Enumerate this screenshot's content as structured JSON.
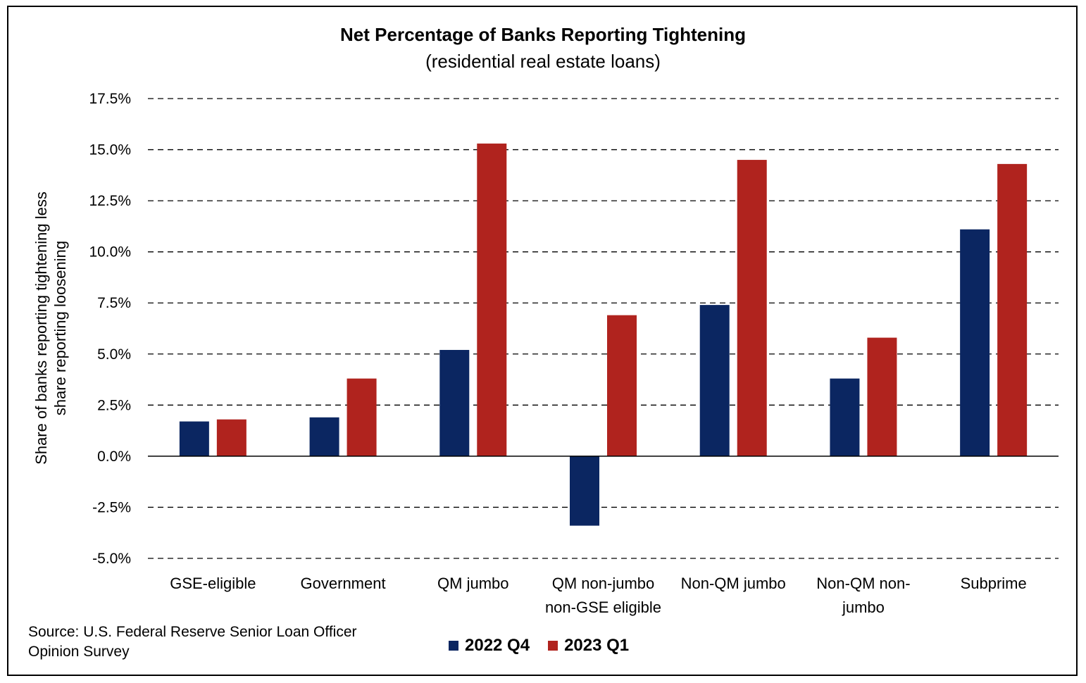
{
  "chart_data": {
    "type": "bar",
    "title": "Net Percentage of Banks Reporting Tightening",
    "subtitle": "(residential real estate loans)",
    "ylabel": "Share of banks reporting tightening less share reporting loosening",
    "ylabel_lines": [
      "Share of banks reporting tightening less",
      "share reporting loosening"
    ],
    "xlabel": "",
    "categories": [
      "GSE-eligible",
      "Government",
      "QM jumbo",
      "QM non-jumbo non-GSE eligible",
      "Non-QM jumbo",
      "Non-QM non-jumbo",
      "Subprime"
    ],
    "category_lines": [
      [
        "GSE-eligible"
      ],
      [
        "Government"
      ],
      [
        "QM jumbo"
      ],
      [
        "QM non-jumbo",
        "non-GSE eligible"
      ],
      [
        "Non-QM jumbo"
      ],
      [
        "Non-QM non-",
        "jumbo"
      ],
      [
        "Subprime"
      ]
    ],
    "series": [
      {
        "name": "2022 Q4",
        "color": "#0b2661",
        "values": [
          1.7,
          1.9,
          5.2,
          -3.4,
          7.4,
          3.8,
          11.1
        ]
      },
      {
        "name": "2023 Q1",
        "color": "#b0231e",
        "values": [
          1.8,
          3.8,
          15.3,
          6.9,
          14.5,
          5.8,
          14.3
        ]
      }
    ],
    "ylim": [
      -5.0,
      17.5
    ],
    "yticks": [
      17.5,
      15.0,
      12.5,
      10.0,
      7.5,
      5.0,
      2.5,
      0.0,
      -2.5,
      -5.0
    ],
    "ytick_labels": [
      "17.5%",
      "15.0%",
      "12.5%",
      "10.0%",
      "7.5%",
      "5.0%",
      "2.5%",
      "0.0%",
      "-2.5%",
      "-5.0%"
    ],
    "grid": "dashed horizontal",
    "legend_position": "bottom-center",
    "source_note": "Source: U.S. Federal Reserve Senior Loan Officer Opinion Survey",
    "source_lines": [
      "Source: U.S. Federal Reserve Senior Loan Officer",
      "Opinion Survey"
    ]
  }
}
